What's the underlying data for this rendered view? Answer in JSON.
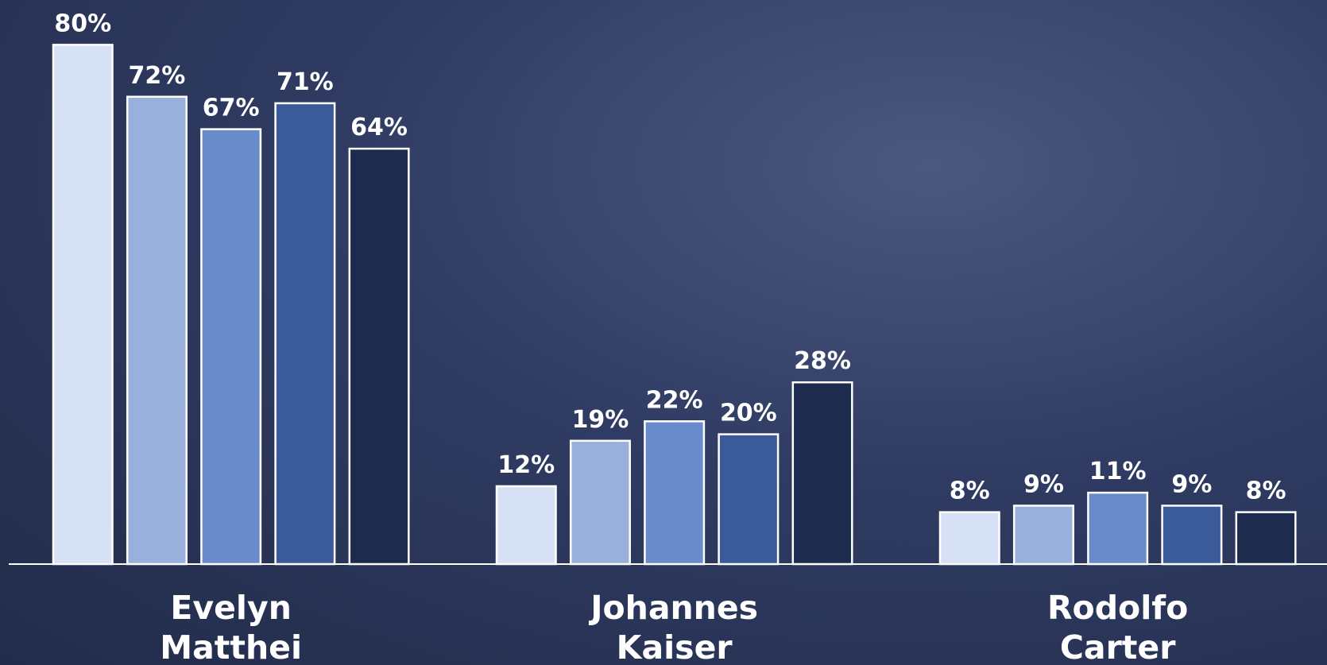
{
  "chart_data": {
    "type": "bar",
    "categories": [
      "Evelyn Matthei",
      "Johannes Kaiser",
      "Rodolfo Carter"
    ],
    "series": [
      {
        "color": "#d6e1f5",
        "values": [
          80,
          12,
          8
        ],
        "value_labels": [
          "80%",
          "12%",
          "8%"
        ]
      },
      {
        "color": "#9ab0dc",
        "values": [
          72,
          19,
          9
        ],
        "value_labels": [
          "72%",
          "19%",
          "9%"
        ]
      },
      {
        "color": "#6a8bcb",
        "values": [
          67,
          22,
          11
        ],
        "value_labels": [
          "67%",
          "22%",
          "11%"
        ]
      },
      {
        "color": "#3a5a9a",
        "values": [
          71,
          20,
          9
        ],
        "value_labels": [
          "71%",
          "20%",
          "9%"
        ]
      },
      {
        "color": "#1c2b4e",
        "values": [
          64,
          28,
          8
        ],
        "value_labels": [
          "64%",
          "28%",
          "8%"
        ]
      }
    ]
  }
}
